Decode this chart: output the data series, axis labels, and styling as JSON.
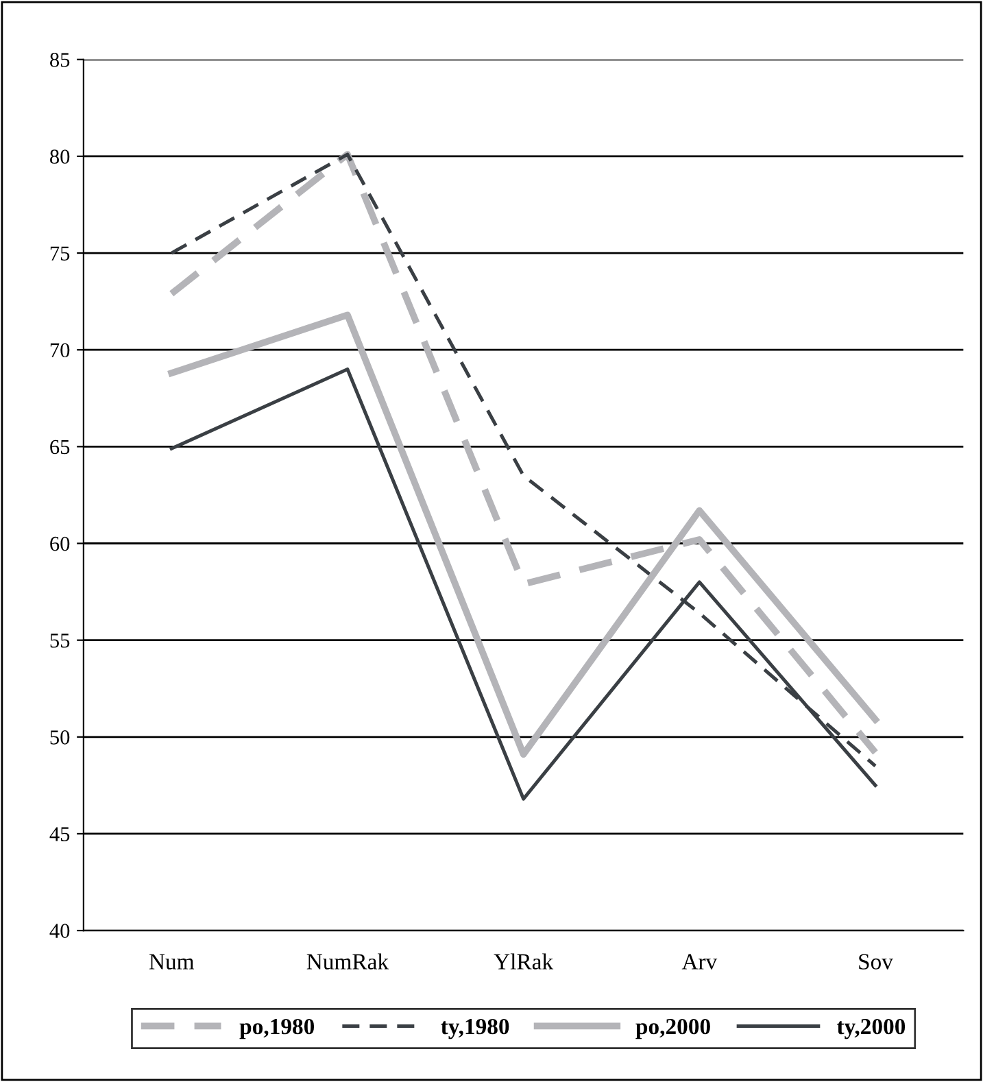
{
  "chart_data": {
    "type": "line",
    "categories": [
      "Num",
      "NumRak",
      "YlRak",
      "Arv",
      "Sov"
    ],
    "series": [
      {
        "name": "po,1980",
        "color": "#b4b4b8",
        "line_style": "dashed",
        "values": [
          72.9,
          80.1,
          57.9,
          60.2,
          49.2
        ]
      },
      {
        "name": "ty,1980",
        "color": "#3a3f44",
        "line_style": "dashed",
        "values": [
          75,
          80.1,
          63.5,
          56.4,
          48.5
        ]
      },
      {
        "name": "po,2000",
        "color": "#b4b4b8",
        "line_style": "solid",
        "values": [
          68.8,
          71.8,
          49.1,
          61.7,
          50.9
        ]
      },
      {
        "name": "ty,2000",
        "color": "#3a3f44",
        "line_style": "solid",
        "values": [
          64.9,
          69.0,
          46.8,
          58.0,
          47.5
        ]
      }
    ],
    "ylim": [
      40,
      85
    ],
    "yticks": [
      40,
      45,
      50,
      55,
      60,
      65,
      70,
      75,
      80,
      85
    ],
    "grid": "y",
    "legend": "bottom",
    "marker": "none"
  }
}
